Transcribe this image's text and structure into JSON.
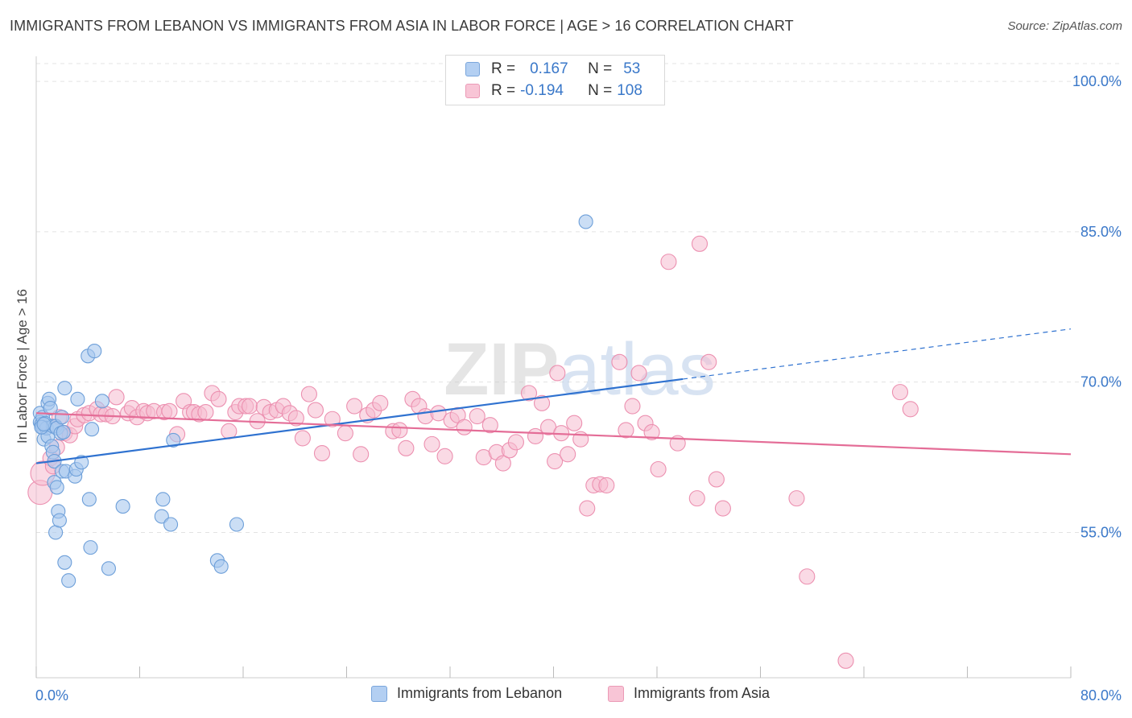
{
  "header": {
    "title": "IMMIGRANTS FROM LEBANON VS IMMIGRANTS FROM ASIA IN LABOR FORCE | AGE > 16 CORRELATION CHART",
    "source": "Source: ZipAtlas.com"
  },
  "watermark": "ZIPatlas",
  "legend": {
    "r_label": "R =",
    "n_label": "N =",
    "lebanon": {
      "r": "0.167",
      "n": "53"
    },
    "asia": {
      "r": "-0.194",
      "n": "108"
    }
  },
  "colors": {
    "lebanon_fill": "#a9c8ee",
    "lebanon_stroke": "#6d9fd9",
    "lebanon_line": "#2f72d0",
    "asia_fill": "#f6bcd0",
    "asia_stroke": "#ec90b0",
    "asia_line": "#e46d97",
    "tick_text": "#3a78c9",
    "grid": "#e3e3e3"
  },
  "chart_data": {
    "type": "scatter",
    "title": "IMMIGRANTS FROM LEBANON VS IMMIGRANTS FROM ASIA IN LABOR FORCE | AGE > 16 CORRELATION CHART",
    "xlabel": "",
    "ylabel": "In Labor Force | Age > 16",
    "xlim": [
      0,
      80
    ],
    "ylim": [
      40.5,
      102.5
    ],
    "x_tick_labels": [
      "0.0%",
      "80.0%"
    ],
    "y_ticks": [
      55,
      70,
      85,
      100
    ],
    "y_tick_labels": [
      "55.0%",
      "70.0%",
      "85.0%",
      "100.0%"
    ],
    "grid": "horizontal dashed",
    "legend_position": "top-center",
    "series": [
      {
        "name": "Immigrants from Lebanon",
        "color": "#a9c8ee",
        "points": [
          [
            0.3,
            66.9
          ],
          [
            0.3,
            66.0
          ],
          [
            0.4,
            65.8
          ],
          [
            0.5,
            66.5
          ],
          [
            0.5,
            65.5
          ],
          [
            0.6,
            64.3
          ],
          [
            0.7,
            65.9
          ],
          [
            0.8,
            65.4
          ],
          [
            0.9,
            67.9
          ],
          [
            0.9,
            64.6
          ],
          [
            1.0,
            68.3
          ],
          [
            1.1,
            67.4
          ],
          [
            1.2,
            63.6
          ],
          [
            1.3,
            65.6
          ],
          [
            1.3,
            63.0
          ],
          [
            1.4,
            62.1
          ],
          [
            1.4,
            60.0
          ],
          [
            1.5,
            65.6
          ],
          [
            1.5,
            55.0
          ],
          [
            1.6,
            65.4
          ],
          [
            1.6,
            59.5
          ],
          [
            1.7,
            57.1
          ],
          [
            1.8,
            56.2
          ],
          [
            1.9,
            64.9
          ],
          [
            2.0,
            66.5
          ],
          [
            2.0,
            61.1
          ],
          [
            2.1,
            65.0
          ],
          [
            2.2,
            69.4
          ],
          [
            2.2,
            52.0
          ],
          [
            2.3,
            61.1
          ],
          [
            2.5,
            50.2
          ],
          [
            3.0,
            60.6
          ],
          [
            3.1,
            61.3
          ],
          [
            3.2,
            68.3
          ],
          [
            3.5,
            62.0
          ],
          [
            4.0,
            72.6
          ],
          [
            4.1,
            58.3
          ],
          [
            4.2,
            53.5
          ],
          [
            4.3,
            65.3
          ],
          [
            4.5,
            73.1
          ],
          [
            5.1,
            68.1
          ],
          [
            5.6,
            51.4
          ],
          [
            6.7,
            57.6
          ],
          [
            9.7,
            56.6
          ],
          [
            9.8,
            58.3
          ],
          [
            10.4,
            55.8
          ],
          [
            10.6,
            64.2
          ],
          [
            14.0,
            52.2
          ],
          [
            14.3,
            51.6
          ],
          [
            15.5,
            55.8
          ],
          [
            42.5,
            86.0
          ],
          [
            0.4,
            65.5
          ],
          [
            0.6,
            65.8
          ]
        ]
      },
      {
        "name": "Immigrants from Asia",
        "color": "#f6bcd0",
        "points": [
          [
            0.3,
            59.0
          ],
          [
            0.5,
            60.9
          ],
          [
            1.1,
            62.4
          ],
          [
            1.3,
            61.6
          ],
          [
            1.6,
            63.5
          ],
          [
            1.8,
            66.5
          ],
          [
            2.2,
            64.9
          ],
          [
            2.6,
            64.7
          ],
          [
            3.0,
            65.6
          ],
          [
            3.2,
            66.3
          ],
          [
            3.7,
            66.7
          ],
          [
            4.1,
            66.9
          ],
          [
            4.7,
            67.3
          ],
          [
            5.0,
            66.8
          ],
          [
            5.4,
            66.8
          ],
          [
            5.9,
            66.6
          ],
          [
            6.2,
            68.5
          ],
          [
            7.1,
            66.9
          ],
          [
            7.4,
            67.4
          ],
          [
            7.8,
            66.5
          ],
          [
            8.3,
            67.1
          ],
          [
            8.6,
            66.9
          ],
          [
            9.1,
            67.1
          ],
          [
            9.9,
            67.0
          ],
          [
            10.3,
            67.1
          ],
          [
            10.9,
            64.8
          ],
          [
            11.4,
            68.1
          ],
          [
            11.9,
            67.0
          ],
          [
            12.2,
            67.0
          ],
          [
            12.6,
            66.8
          ],
          [
            13.1,
            67.0
          ],
          [
            13.6,
            68.9
          ],
          [
            14.1,
            68.3
          ],
          [
            14.9,
            65.1
          ],
          [
            15.4,
            67.0
          ],
          [
            15.7,
            67.6
          ],
          [
            16.2,
            67.6
          ],
          [
            16.5,
            67.6
          ],
          [
            17.1,
            66.1
          ],
          [
            17.6,
            67.5
          ],
          [
            18.1,
            67.0
          ],
          [
            18.6,
            67.2
          ],
          [
            19.1,
            67.6
          ],
          [
            19.6,
            66.9
          ],
          [
            20.1,
            66.4
          ],
          [
            20.6,
            64.4
          ],
          [
            21.1,
            68.8
          ],
          [
            21.6,
            67.2
          ],
          [
            22.1,
            62.9
          ],
          [
            22.9,
            66.3
          ],
          [
            23.9,
            64.9
          ],
          [
            24.6,
            67.6
          ],
          [
            25.1,
            62.8
          ],
          [
            25.6,
            66.7
          ],
          [
            26.1,
            67.2
          ],
          [
            26.6,
            67.9
          ],
          [
            27.6,
            65.1
          ],
          [
            28.1,
            65.2
          ],
          [
            28.6,
            63.4
          ],
          [
            29.1,
            68.3
          ],
          [
            29.6,
            67.6
          ],
          [
            30.1,
            66.6
          ],
          [
            30.6,
            63.8
          ],
          [
            31.1,
            66.9
          ],
          [
            31.6,
            62.6
          ],
          [
            32.1,
            66.2
          ],
          [
            32.6,
            66.7
          ],
          [
            33.1,
            65.5
          ],
          [
            34.1,
            66.6
          ],
          [
            34.6,
            62.5
          ],
          [
            35.1,
            65.7
          ],
          [
            35.6,
            63.0
          ],
          [
            36.1,
            61.9
          ],
          [
            36.6,
            63.2
          ],
          [
            37.1,
            64.0
          ],
          [
            38.1,
            68.9
          ],
          [
            38.6,
            64.6
          ],
          [
            39.1,
            67.9
          ],
          [
            39.6,
            65.5
          ],
          [
            40.1,
            62.1
          ],
          [
            40.6,
            64.9
          ],
          [
            41.1,
            62.8
          ],
          [
            41.6,
            65.9
          ],
          [
            42.1,
            64.3
          ],
          [
            42.6,
            57.4
          ],
          [
            43.1,
            59.7
          ],
          [
            43.6,
            59.8
          ],
          [
            44.1,
            59.7
          ],
          [
            45.1,
            72.0
          ],
          [
            45.6,
            65.2
          ],
          [
            46.1,
            67.6
          ],
          [
            46.6,
            70.9
          ],
          [
            47.1,
            65.9
          ],
          [
            47.6,
            65.0
          ],
          [
            48.1,
            61.3
          ],
          [
            48.9,
            82.0
          ],
          [
            49.6,
            63.9
          ],
          [
            51.1,
            58.4
          ],
          [
            51.3,
            83.8
          ],
          [
            52.0,
            72.0
          ],
          [
            52.6,
            60.3
          ],
          [
            53.1,
            57.4
          ],
          [
            58.8,
            58.4
          ],
          [
            59.6,
            50.6
          ],
          [
            62.6,
            42.2
          ],
          [
            66.8,
            69.0
          ],
          [
            67.6,
            67.3
          ],
          [
            40.3,
            70.9
          ]
        ]
      }
    ],
    "trend_lines": [
      {
        "series": "Immigrants from Lebanon",
        "x_start": 0,
        "y_start": 61.9,
        "x_end": 50,
        "y_end": 70.3,
        "dashed_to_x": 80,
        "dashed_to_y": 75.3
      },
      {
        "series": "Immigrants from Asia",
        "x_start": 0,
        "y_start": 66.9,
        "x_end": 80,
        "y_end": 62.8
      }
    ]
  },
  "bottom_legend": {
    "lebanon_label": "Immigrants from Lebanon",
    "asia_label": "Immigrants from Asia"
  }
}
